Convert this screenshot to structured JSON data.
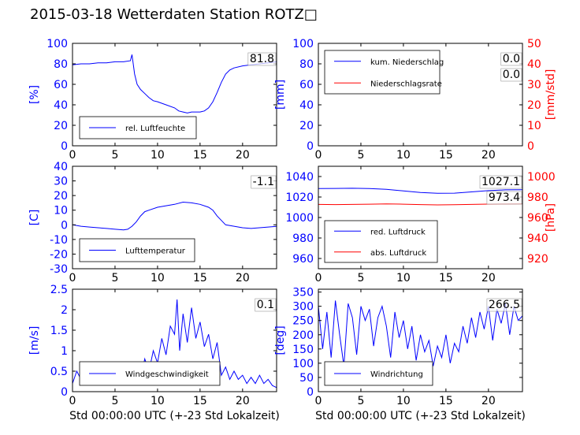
{
  "title": "2015-03-18 Wetterdaten Station ROTZ□",
  "colors": {
    "axis_left": "#0000ff",
    "axis_right": "#ff0000",
    "text": "#000000"
  },
  "chart_data": [
    {
      "id": "humidity",
      "type": "line",
      "ylabel": "[%]",
      "ylim": [
        0,
        100
      ],
      "yticks": [
        0,
        20,
        40,
        60,
        80,
        100
      ],
      "xlim": [
        0,
        24
      ],
      "xticks": [
        0,
        5,
        10,
        15,
        20
      ],
      "legend": {
        "placement": "lower-left",
        "entries": [
          "rel. Luftfeuchte"
        ]
      },
      "current_value": "81.8",
      "series": [
        {
          "name": "rel. Luftfeuchte",
          "color": "#0000ff",
          "axis": "left",
          "x": [
            0,
            1,
            2,
            3,
            4,
            5,
            6,
            6.8,
            7.0,
            7.3,
            7.6,
            8,
            8.5,
            9,
            9.5,
            10,
            11,
            12,
            12.5,
            13,
            13.5,
            14,
            14.5,
            15,
            15.5,
            16,
            16.5,
            17,
            17.5,
            18,
            18.5,
            19,
            20,
            21,
            22,
            23,
            24
          ],
          "y": [
            79,
            80,
            80,
            81,
            81,
            82,
            82,
            83,
            89,
            70,
            60,
            55,
            51,
            47,
            44,
            43,
            40,
            37,
            34,
            33,
            32,
            33,
            33,
            33,
            34,
            37,
            43,
            52,
            62,
            70,
            74,
            76,
            78,
            79,
            80,
            81,
            82
          ]
        }
      ]
    },
    {
      "id": "precipitation",
      "type": "line",
      "ylabel": "[mm]",
      "ylim": [
        0,
        100
      ],
      "yticks": [
        0,
        20,
        40,
        60,
        80,
        100
      ],
      "ylabel_right": "[mm/std]",
      "ylim_right": [
        0,
        50
      ],
      "yticks_right": [
        0,
        10,
        20,
        30,
        40,
        50
      ],
      "xlim": [
        0,
        24
      ],
      "xticks": [
        0,
        5,
        10,
        15,
        20
      ],
      "legend": {
        "placement": "upper-left",
        "entries": [
          "kum. Niederschlag",
          "Niederschlagsrate"
        ]
      },
      "current_value": "0.0",
      "current_value_2": "0.0",
      "series": [
        {
          "name": "kum. Niederschlag",
          "color": "#0000ff",
          "axis": "left",
          "x": [
            0,
            24
          ],
          "y": [
            0,
            0
          ]
        },
        {
          "name": "Niederschlagsrate",
          "color": "#ff0000",
          "axis": "right",
          "x": [
            0,
            24
          ],
          "y": [
            0,
            0
          ]
        }
      ]
    },
    {
      "id": "temperature",
      "type": "line",
      "ylabel": "[C]",
      "ylim": [
        -30,
        40
      ],
      "yticks": [
        -30,
        -20,
        -10,
        0,
        10,
        20,
        30,
        40
      ],
      "xlim": [
        0,
        24
      ],
      "xticks": [
        0,
        5,
        10,
        15,
        20
      ],
      "legend": {
        "placement": "lower-left",
        "entries": [
          "Lufttemperatur"
        ]
      },
      "current_value": "-1.1",
      "series": [
        {
          "name": "Lufttemperatur",
          "color": "#0000ff",
          "axis": "left",
          "x": [
            0,
            1,
            2,
            3,
            4,
            5,
            6,
            6.5,
            7,
            7.5,
            8,
            8.5,
            9,
            10,
            11,
            12,
            13,
            14,
            15,
            16,
            16.5,
            17,
            17.5,
            18,
            19,
            20,
            21,
            22,
            23,
            24
          ],
          "y": [
            0,
            -1,
            -1.5,
            -2,
            -2.5,
            -3,
            -3.5,
            -3,
            -1,
            2,
            6,
            9,
            10,
            12,
            13,
            14,
            15.5,
            15,
            14,
            12,
            10,
            6,
            3,
            0,
            -1,
            -2,
            -2.5,
            -2,
            -1.5,
            -1.1
          ]
        }
      ]
    },
    {
      "id": "pressure",
      "type": "line",
      "ylabel": "",
      "ylim": [
        950,
        1050
      ],
      "yticks": [
        960,
        980,
        1000,
        1020,
        1040
      ],
      "ylabel_right": "[hPa]",
      "ylim_right": [
        910,
        1010
      ],
      "yticks_right": [
        920,
        940,
        960,
        980,
        1000
      ],
      "xlim": [
        0,
        24
      ],
      "xticks": [
        0,
        5,
        10,
        15,
        20
      ],
      "legend": {
        "placement": "lower-left",
        "entries": [
          "red. Luftdruck",
          "abs. Luftdruck"
        ]
      },
      "current_value": "1027.1",
      "current_value_2": "973.4",
      "series": [
        {
          "name": "red. Luftdruck",
          "color": "#0000ff",
          "axis": "left",
          "x": [
            0,
            2,
            4,
            6,
            8,
            10,
            12,
            14,
            16,
            18,
            20,
            22,
            24
          ],
          "y": [
            1028.2,
            1028.4,
            1028.5,
            1028.3,
            1027.5,
            1026,
            1024.5,
            1023.6,
            1023.8,
            1025,
            1026.2,
            1027,
            1027.1
          ]
        },
        {
          "name": "abs. Luftdruck",
          "color": "#ff0000",
          "axis": "right",
          "x": [
            0,
            2,
            4,
            6,
            8,
            10,
            12,
            14,
            16,
            18,
            20,
            22,
            24
          ],
          "y": [
            972.8,
            972.6,
            972.8,
            973.0,
            973.2,
            973.0,
            972.6,
            972.3,
            972.5,
            972.8,
            973.1,
            973.3,
            973.4
          ]
        }
      ]
    },
    {
      "id": "windspeed",
      "type": "line",
      "ylabel": "[m/s]",
      "ylim": [
        0,
        2.5
      ],
      "yticks": [
        0.0,
        0.5,
        1.0,
        1.5,
        2.0,
        2.5
      ],
      "xlim": [
        0,
        24
      ],
      "xticks": [
        0,
        5,
        10,
        15,
        20
      ],
      "xlabel": "Std 00:00:00 UTC (+-23 Std Lokalzeit)",
      "legend": {
        "placement": "lower-left",
        "entries": [
          "Windgeschwindigkeit"
        ]
      },
      "current_value": "0.1",
      "series": [
        {
          "name": "Windgeschwindigkeit",
          "color": "#0000ff",
          "axis": "left",
          "x": [
            0,
            0.5,
            1,
            1.5,
            2,
            2.5,
            3,
            3.5,
            4,
            4.5,
            5,
            5.5,
            6,
            6.5,
            7,
            7.5,
            8,
            8.5,
            9,
            9.5,
            10,
            10.5,
            11,
            11.5,
            12,
            12.3,
            12.6,
            13,
            13.5,
            14,
            14.5,
            15,
            15.5,
            16,
            16.5,
            17,
            17.5,
            18,
            18.5,
            19,
            19.5,
            20,
            20.5,
            21,
            21.5,
            22,
            22.5,
            23,
            23.5,
            24
          ],
          "y": [
            0.2,
            0.5,
            0.3,
            0.7,
            0.2,
            0.4,
            0.3,
            0.2,
            0.3,
            0.5,
            0.2,
            0.3,
            0.2,
            0.4,
            0.3,
            0.4,
            0.3,
            0.8,
            0.5,
            1.0,
            0.7,
            1.3,
            0.9,
            1.6,
            1.4,
            2.25,
            1.0,
            1.9,
            1.2,
            2.05,
            1.3,
            1.7,
            1.1,
            1.4,
            0.8,
            1.2,
            0.4,
            0.6,
            0.3,
            0.5,
            0.3,
            0.4,
            0.2,
            0.35,
            0.2,
            0.4,
            0.2,
            0.3,
            0.15,
            0.1
          ]
        }
      ]
    },
    {
      "id": "winddir",
      "type": "line",
      "ylabel": "[deg]",
      "ylim": [
        0,
        360
      ],
      "yticks": [
        0,
        50,
        100,
        150,
        200,
        250,
        300,
        350
      ],
      "xlim": [
        0,
        24
      ],
      "xticks": [
        0,
        5,
        10,
        15,
        20
      ],
      "xlabel": "Std 00:00:00 UTC (+-23 Std Lokalzeit)",
      "legend": {
        "placement": "lower-left",
        "entries": [
          "Windrichtung"
        ]
      },
      "current_value": "266.5",
      "series": [
        {
          "name": "Windrichtung",
          "color": "#0000ff",
          "axis": "left",
          "x": [
            0,
            0.5,
            1,
            1.5,
            2,
            2.5,
            3,
            3.5,
            4,
            4.5,
            5,
            5.5,
            6,
            6.5,
            7,
            7.5,
            8,
            8.5,
            9,
            9.5,
            10,
            10.5,
            11,
            11.5,
            12,
            12.5,
            13,
            13.5,
            14,
            14.5,
            15,
            15.5,
            16,
            16.5,
            17,
            17.5,
            18,
            18.5,
            19,
            19.5,
            20,
            20.5,
            21,
            21.5,
            22,
            22.5,
            23,
            23.5,
            24
          ],
          "y": [
            300,
            150,
            280,
            120,
            320,
            200,
            90,
            310,
            260,
            130,
            300,
            250,
            290,
            160,
            260,
            300,
            230,
            120,
            280,
            190,
            250,
            150,
            230,
            110,
            200,
            140,
            180,
            90,
            160,
            120,
            200,
            100,
            170,
            140,
            230,
            170,
            260,
            190,
            280,
            220,
            300,
            180,
            290,
            240,
            310,
            200,
            300,
            250,
            266.5
          ]
        }
      ]
    }
  ]
}
